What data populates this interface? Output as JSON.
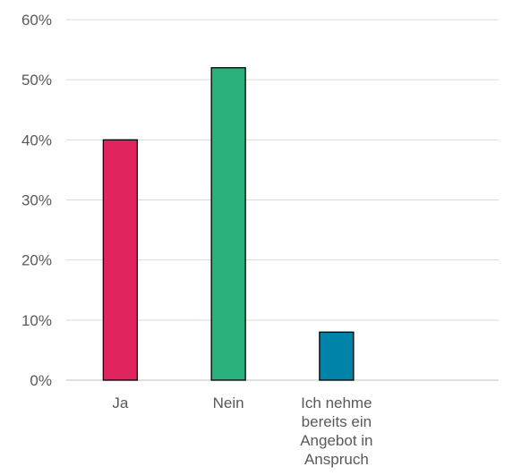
{
  "chart_data": {
    "type": "bar",
    "title": "",
    "xlabel": "",
    "ylabel": "",
    "categories": [
      {
        "label": "Ja",
        "lines": [
          "Ja"
        ]
      },
      {
        "label": "Nein",
        "lines": [
          "Nein"
        ]
      },
      {
        "label": "Ich nehme bereits ein Angebot in Anspruch",
        "lines": [
          "Ich nehme",
          "bereits ein",
          "Angebot in",
          "Anspruch"
        ]
      },
      {
        "label": "",
        "lines": []
      }
    ],
    "values": [
      40,
      52,
      8,
      null
    ],
    "colors": [
      "#e0245e",
      "#2ab07b",
      "#0083a9",
      null
    ],
    "ylim": [
      0,
      60
    ],
    "yticks": [
      0,
      10,
      20,
      30,
      40,
      50,
      60
    ],
    "ytick_labels": [
      "0%",
      "10%",
      "20%",
      "30%",
      "40%",
      "50%",
      "60%"
    ],
    "grid": true,
    "legend": "none"
  }
}
